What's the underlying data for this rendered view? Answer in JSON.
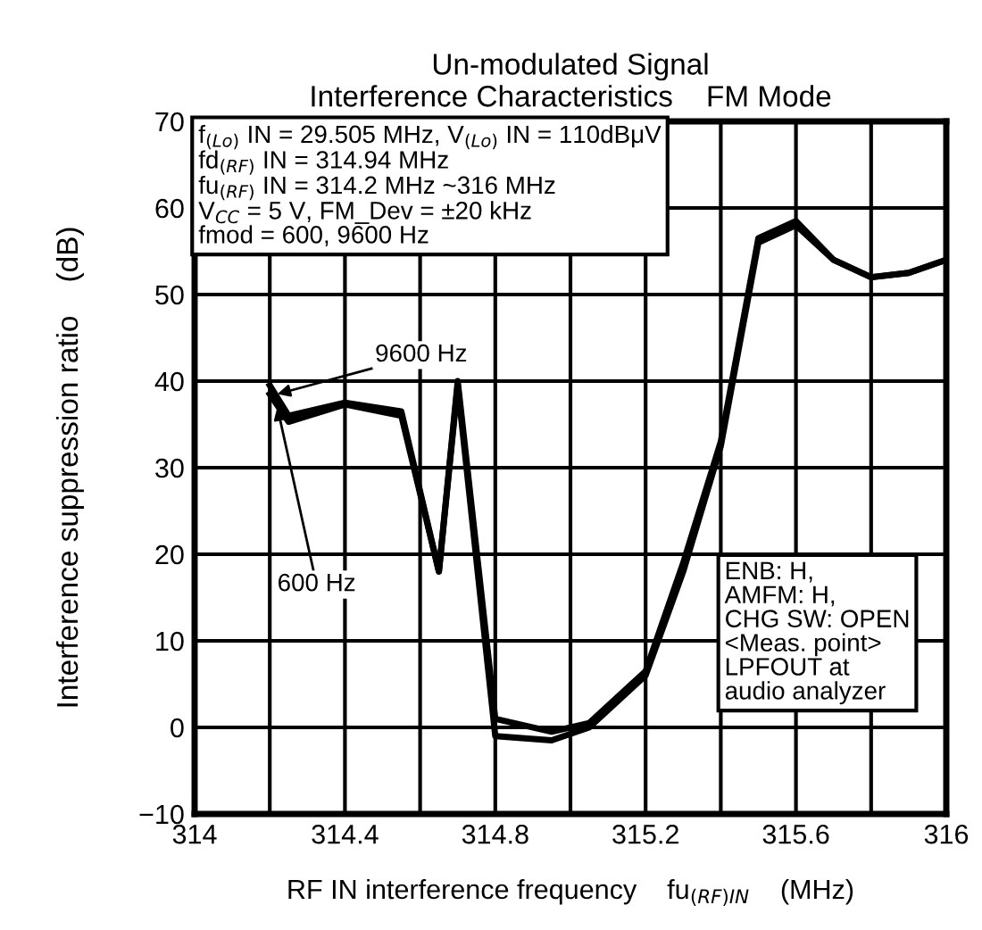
{
  "chart_data": {
    "type": "line",
    "title": "Un-modulated Signal\nInterference Characteristics    FM Mode",
    "xlabel": "RF IN interference frequency    fu$_{(RF)IN}$    (MHz)",
    "ylabel": "Interference suppression ratio    (dB)",
    "xlim": [
      314,
      316
    ],
    "ylim": [
      -10,
      70
    ],
    "xticks": [
      314,
      {
        "value": 314.2,
        "label": null
      },
      314.4,
      {
        "value": 314.6,
        "label": null
      },
      314.8,
      {
        "value": 315.0,
        "label": null
      },
      315.2,
      {
        "value": 315.4,
        "label": null
      },
      315.6,
      {
        "value": 315.8,
        "label": null
      },
      316
    ],
    "yticks": [
      {
        "value": -10,
        "label": "−10"
      },
      0,
      10,
      20,
      30,
      40,
      50,
      60,
      70
    ],
    "grid": true,
    "legend": false,
    "marker": "none",
    "line_style": "solid",
    "x": [
      314.2,
      314.25,
      314.4,
      314.55,
      314.65,
      314.7,
      314.8,
      314.95,
      315.05,
      315.2,
      315.3,
      315.4,
      315.5,
      315.6,
      315.7,
      315.8,
      315.9,
      316
    ],
    "series": [
      {
        "color": "#000000",
        "values": [
          39.5,
          36,
          37.5,
          36.5,
          18,
          40,
          1,
          -0.5,
          0.5,
          6.5,
          19,
          33,
          56.5,
          58.5,
          54,
          52,
          52.5,
          54
        ]
      },
      {
        "color": "#000000",
        "values": [
          38.5,
          35.3,
          37.3,
          36,
          18,
          39.5,
          -1,
          -1.5,
          0,
          6,
          18,
          32.5,
          56,
          58,
          54,
          52,
          52.5,
          54
        ]
      }
    ],
    "annotations": [
      "f$_{(Lo)}$ IN = 29.505 MHz, V$_{(Lo)}$ IN = 110dBμV\nfd$_{(RF)}$ IN = 314.94 MHz\nfu$_{(RF)}$ IN = 314.2 MHz ~316 MHz\nV$_{CC}$ = 5 V, FM_Dev = ±20 kHz\nfmod = 600, 9600 Hz",
      "ENB: H,\nAMFM: H,\nCHG SW: OPEN\n<Meas. point>\nLPFOUT at\naudio analyzer",
      {
        "text": "9600 Hz",
        "x": 314.22,
        "y": 38.5
      },
      {
        "text": "600 Hz",
        "x": 314.22,
        "y": 37
      }
    ]
  }
}
